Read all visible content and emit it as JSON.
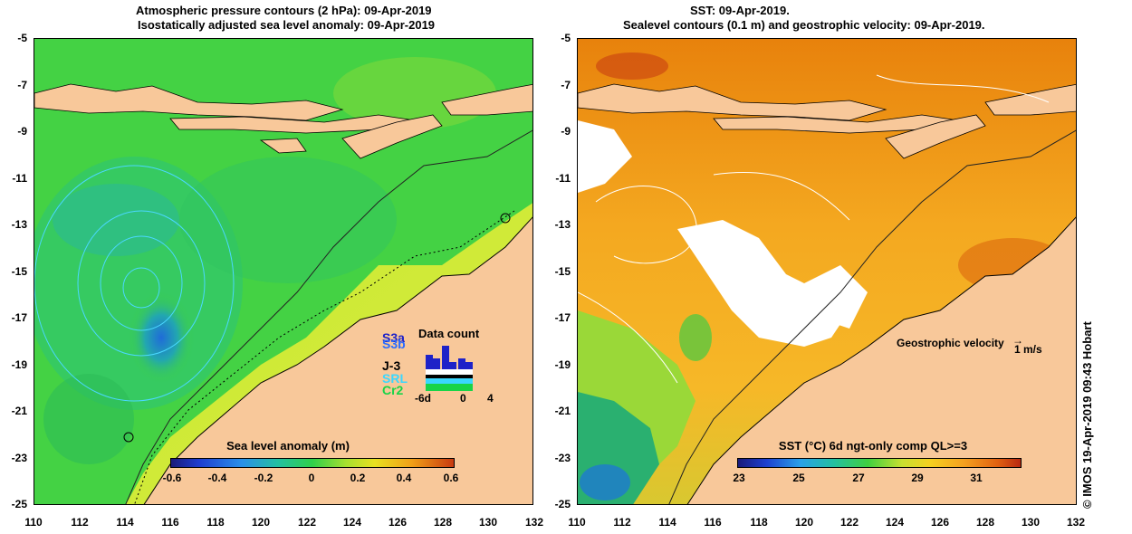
{
  "left": {
    "title_line1": "Atmospheric pressure contours (2 hPa): 09-Apr-2019",
    "title_line2": "Isostatically adjusted sea level anomaly: 09-Apr-2019",
    "colorbar_title": "Sea level anomaly (m)",
    "colorbar_ticks": [
      "-0.6",
      "-0.4",
      "-0.2",
      "0",
      "0.2",
      "0.4",
      "0.6"
    ],
    "data_count_title": "Data count",
    "satellites": [
      {
        "label": "S3a",
        "color": "#1e22c8"
      },
      {
        "label": "S3b",
        "color": "#2a6cff"
      },
      {
        "label": "J-3",
        "color": "#000000"
      },
      {
        "label": "SRL",
        "color": "#3ad7ff"
      },
      {
        "label": "Cr2",
        "color": "#18d448"
      }
    ],
    "data_count_axis": [
      "-6d",
      "0",
      "4"
    ]
  },
  "right": {
    "title_line1": "SST: 09-Apr-2019.",
    "title_line2": "Sealevel contours (0.1 m) and geostrophic velocity: 09-Apr-2019.",
    "colorbar_title": "SST (°C) 6d ngt-only comp QL>=3",
    "colorbar_ticks": [
      "23",
      "25",
      "27",
      "29",
      "31"
    ],
    "velocity_label": "Geostrophic velocity",
    "velocity_unit": "1 m/s"
  },
  "axes": {
    "y_ticks": [
      "-5",
      "-7",
      "-9",
      "-11",
      "-13",
      "-15",
      "-17",
      "-19",
      "-21",
      "-23",
      "-25"
    ],
    "x_ticks": [
      "110",
      "112",
      "114",
      "116",
      "118",
      "120",
      "122",
      "124",
      "126",
      "128",
      "130",
      "132"
    ]
  },
  "credit": "© IMOS 19-Apr-2019 09:43 Hobart",
  "colors": {
    "land": "#f8c89a",
    "ocean_green": "#3fd03f",
    "sst_orange": "#f2a020"
  }
}
